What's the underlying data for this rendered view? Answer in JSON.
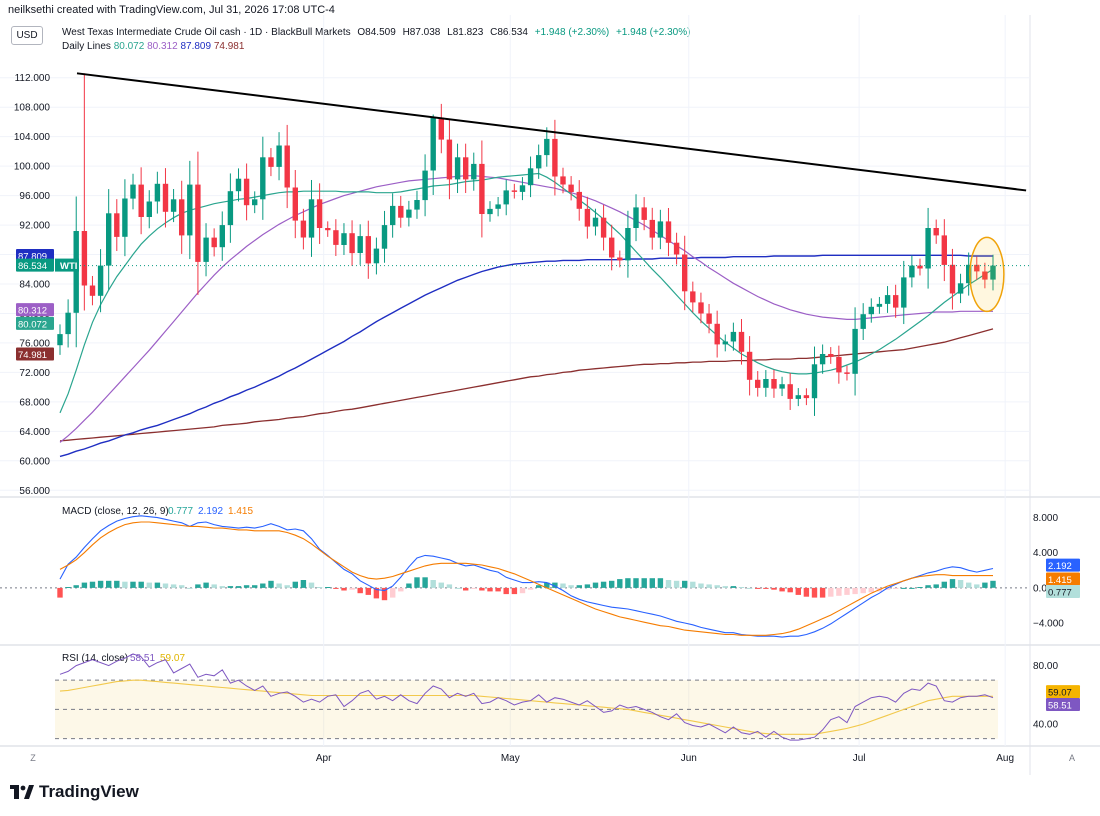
{
  "credit": "neilksethi created with TradingView.com, Jul 31, 2026 17:08 UTC-4",
  "currency_button": "USD",
  "brand": "TradingView",
  "colors": {
    "up": "#089981",
    "down": "#f23645",
    "sma20": "#2aa58f",
    "sma50": "#9c5fc6",
    "sma100": "#1f2ec2",
    "sma200": "#8b2f2f",
    "macd": "#2962ff",
    "signal": "#f57c00",
    "rsi": "#7e57c2",
    "rsi_ma": "#f2c94c"
  },
  "legend": {
    "symbol": "West Texas Intermediate Crude Oil cash · 1D · BlackBull Markets",
    "open": "O84.509",
    "high": "H87.038",
    "low": "L81.823",
    "close": "C86.534",
    "change": "+1.948 (+2.30%)",
    "change2": "+1.948 (+2.30%)",
    "lines_label": "Daily Lines",
    "lines_values": [
      "80.072",
      "80.312",
      "87.809",
      "74.981"
    ]
  },
  "chart_data": [
    {
      "type": "candlestick",
      "title": "West Texas Intermediate Crude Oil cash",
      "ylim": [
        54,
        114
      ],
      "y_ticks": [
        "112.000",
        "108.000",
        "104.000",
        "100.000",
        "96.000",
        "92.000",
        "88.000",
        "84.000",
        "80.000",
        "76.000",
        "72.000",
        "68.000",
        "64.000",
        "60.000",
        "56.000"
      ],
      "x_ticks": [
        "Apr",
        "May",
        "Jun",
        "Jul",
        "Aug"
      ],
      "last_price_tag": "86.534",
      "last_price_label": "WTI",
      "ma_tags": [
        "87.809",
        "80.312",
        "80.072",
        "74.981"
      ],
      "closes": [
        77.2,
        80.1,
        91.2,
        83.8,
        82.4,
        86.5,
        93.6,
        90.4,
        95.6,
        97.5,
        93.1,
        95.2,
        97.6,
        93.8,
        95.5,
        90.6,
        97.5,
        87.0,
        90.3,
        89.0,
        92.0,
        96.6,
        98.3,
        94.7,
        95.5,
        101.2,
        99.9,
        102.8,
        97.1,
        92.6,
        90.3,
        95.5,
        91.6,
        91.3,
        89.3,
        90.9,
        88.2,
        90.5,
        86.8,
        88.8,
        92.0,
        94.6,
        93.0,
        94.1,
        95.4,
        99.4,
        106.6,
        103.6,
        98.2,
        101.2,
        98.2,
        100.3,
        93.5,
        94.2,
        94.8,
        96.7,
        96.5,
        97.4,
        99.7,
        101.5,
        103.7,
        98.6,
        97.5,
        96.5,
        94.2,
        91.8,
        93.0,
        90.3,
        87.6,
        87.2,
        91.6,
        94.4,
        92.7,
        90.3,
        92.5,
        89.6,
        88.0,
        83.0,
        81.5,
        80.0,
        78.6,
        75.8,
        76.2,
        77.5,
        74.8,
        71.0,
        69.9,
        71.1,
        69.8,
        70.4,
        68.4,
        68.9,
        68.5,
        73.1,
        74.5,
        74.1,
        72.0,
        71.8,
        77.9,
        79.9,
        80.9,
        81.3,
        82.5,
        80.8,
        84.9,
        86.5,
        86.1,
        91.6,
        90.6,
        86.6,
        82.7,
        84.1,
        86.6,
        85.7,
        84.6,
        86.5
      ],
      "sma20": [
        66.5,
        69.1,
        72.3,
        75.7,
        78.8,
        81.2,
        83.2,
        85.0,
        86.5,
        88.0,
        89.4,
        90.5,
        91.5,
        92.3,
        93.0,
        93.6,
        94.0,
        94.3,
        94.6,
        94.9,
        95.1,
        95.3,
        95.5,
        95.6,
        95.8,
        96.0,
        96.2,
        96.4,
        96.5,
        96.5,
        96.6,
        96.6,
        96.6,
        96.6,
        96.6,
        96.5,
        96.5,
        96.5,
        96.5,
        96.4,
        96.4,
        96.4,
        96.5,
        96.7,
        96.9,
        97.1,
        97.3,
        97.4,
        97.5,
        97.7,
        97.9,
        98.0,
        98.1,
        98.3,
        98.5,
        98.6,
        98.7,
        98.8,
        98.9,
        99.0,
        98.5,
        97.8,
        97.0,
        96.2,
        95.4,
        94.6,
        93.7,
        92.8,
        91.8,
        90.8,
        89.6,
        88.4,
        87.2,
        86.0,
        84.9,
        83.7,
        82.5,
        81.3,
        80.1,
        79.0,
        78.0,
        77.0,
        76.1,
        75.3,
        74.5,
        73.9,
        73.3,
        72.8,
        72.4,
        72.1,
        71.9,
        71.8,
        71.8,
        71.9,
        72.1,
        72.3,
        72.6,
        73.0,
        73.4,
        73.9,
        74.5,
        75.1,
        75.8,
        76.5,
        77.3,
        78.1,
        78.9,
        79.7,
        80.6,
        81.5,
        82.3,
        83.1,
        83.9,
        84.6,
        85.3,
        86.0
      ],
      "sma50": [
        62.5,
        63.4,
        64.4,
        65.5,
        66.6,
        67.8,
        69.0,
        70.2,
        71.4,
        72.6,
        73.8,
        75.0,
        76.3,
        77.6,
        78.9,
        80.2,
        81.5,
        82.8,
        84.0,
        85.2,
        86.3,
        87.3,
        88.2,
        89.1,
        89.9,
        90.7,
        91.4,
        92.1,
        92.7,
        93.3,
        93.8,
        94.3,
        94.8,
        95.2,
        95.6,
        96.0,
        96.3,
        96.6,
        96.9,
        97.2,
        97.4,
        97.6,
        97.8,
        98.0,
        98.1,
        98.2,
        98.3,
        98.4,
        98.5,
        98.6,
        98.7,
        98.7,
        98.6,
        98.5,
        98.4,
        98.2,
        98.0,
        97.8,
        97.6,
        97.4,
        97.2,
        97.0,
        96.7,
        96.4,
        96.1,
        95.7,
        95.3,
        94.8,
        94.3,
        93.8,
        93.2,
        92.6,
        92.0,
        91.3,
        90.6,
        89.9,
        89.2,
        88.5,
        87.7,
        87.0,
        86.2,
        85.5,
        84.8,
        84.1,
        83.5,
        82.9,
        82.3,
        81.8,
        81.3,
        80.9,
        80.5,
        80.2,
        79.9,
        79.7,
        79.5,
        79.4,
        79.3,
        79.2,
        79.2,
        79.3,
        79.4,
        79.5,
        79.6,
        79.7,
        79.8,
        79.9,
        80.0,
        80.1,
        80.2,
        80.2,
        80.2,
        80.3,
        80.3,
        80.3,
        80.3,
        80.3
      ],
      "sma100": [
        60.6,
        60.9,
        61.3,
        61.6,
        62.0,
        62.4,
        62.7,
        63.1,
        63.5,
        63.8,
        64.2,
        64.5,
        64.8,
        65.2,
        65.6,
        66.0,
        66.4,
        66.9,
        67.3,
        67.8,
        68.2,
        68.7,
        69.1,
        69.6,
        70.0,
        70.5,
        71.0,
        71.5,
        72.1,
        72.6,
        73.2,
        73.8,
        74.4,
        75.0,
        75.6,
        76.2,
        76.9,
        77.5,
        78.2,
        78.9,
        79.5,
        80.1,
        80.7,
        81.3,
        81.9,
        82.5,
        83.0,
        83.5,
        84.0,
        84.5,
        84.9,
        85.3,
        85.7,
        86.0,
        86.3,
        86.5,
        86.7,
        86.8,
        86.9,
        87.0,
        87.1,
        87.1,
        87.2,
        87.2,
        87.2,
        87.3,
        87.3,
        87.3,
        87.3,
        87.3,
        87.4,
        87.4,
        87.4,
        87.4,
        87.5,
        87.5,
        87.5,
        87.5,
        87.5,
        87.6,
        87.6,
        87.6,
        87.6,
        87.7,
        87.7,
        87.7,
        87.7,
        87.7,
        87.8,
        87.8,
        87.8,
        87.8,
        87.8,
        87.8,
        87.9,
        87.9,
        87.9,
        87.9,
        87.9,
        87.9,
        87.9,
        87.9,
        87.9,
        87.9,
        87.9,
        87.9,
        87.9,
        87.9,
        87.9,
        87.9,
        87.9,
        87.9,
        87.8,
        87.8,
        87.8,
        87.8
      ],
      "sma200": [
        62.7,
        62.8,
        62.9,
        63.0,
        63.1,
        63.2,
        63.3,
        63.4,
        63.5,
        63.6,
        63.7,
        63.8,
        63.9,
        64.0,
        64.1,
        64.2,
        64.3,
        64.4,
        64.5,
        64.6,
        64.8,
        64.9,
        65.0,
        65.1,
        65.3,
        65.4,
        65.5,
        65.6,
        65.8,
        65.9,
        66.0,
        66.2,
        66.4,
        66.5,
        66.7,
        66.9,
        67.0,
        67.2,
        67.4,
        67.6,
        67.8,
        68.0,
        68.2,
        68.4,
        68.6,
        68.8,
        69.0,
        69.2,
        69.4,
        69.6,
        69.8,
        70.0,
        70.2,
        70.4,
        70.6,
        70.8,
        71.0,
        71.2,
        71.4,
        71.5,
        71.7,
        71.8,
        72.0,
        72.1,
        72.3,
        72.4,
        72.5,
        72.6,
        72.7,
        72.8,
        72.9,
        73.0,
        73.1,
        73.1,
        73.2,
        73.2,
        73.3,
        73.3,
        73.4,
        73.4,
        73.5,
        73.5,
        73.5,
        73.6,
        73.6,
        73.6,
        73.7,
        73.7,
        73.8,
        73.8,
        73.8,
        73.9,
        73.9,
        74.0,
        74.1,
        74.2,
        74.3,
        74.4,
        74.5,
        74.6,
        74.7,
        74.8,
        74.9,
        75.0,
        75.1,
        75.3,
        75.5,
        75.7,
        75.9,
        76.1,
        76.4,
        76.7,
        77.0,
        77.3,
        77.6,
        77.9
      ],
      "trendline": [
        [
          0,
          112.6
        ],
        [
          116,
          96.7
        ]
      ]
    },
    {
      "type": "macd",
      "title": "MACD (close, 12, 26, 9)",
      "values": [
        "0.777",
        "2.192",
        "1.415"
      ],
      "ylim": [
        -6.5,
        10
      ],
      "y_ticks": [
        "8.000",
        "4.000",
        "0.000",
        "−4.000"
      ],
      "tags": [
        "2.192",
        "1.415",
        "0.777"
      ],
      "macd": [
        1.0,
        2.7,
        3.5,
        4.6,
        5.6,
        6.5,
        7.1,
        7.6,
        7.9,
        8.1,
        8.2,
        8.1,
        8.0,
        7.8,
        7.6,
        7.4,
        7.0,
        7.4,
        7.5,
        7.2,
        7.0,
        6.9,
        6.8,
        6.9,
        6.8,
        7.0,
        7.3,
        7.0,
        6.6,
        6.7,
        6.5,
        5.6,
        4.4,
        3.7,
        2.9,
        2.1,
        1.6,
        0.8,
        0.3,
        -0.2,
        -0.3,
        0.2,
        1.2,
        2.4,
        3.4,
        3.7,
        3.6,
        3.4,
        3.2,
        2.8,
        2.5,
        2.6,
        2.3,
        2.0,
        1.8,
        1.2,
        0.9,
        0.6,
        0.6,
        0.7,
        0.6,
        0.2,
        -0.3,
        -0.9,
        -1.3,
        -1.6,
        -1.8,
        -2.0,
        -2.2,
        -2.3,
        -2.4,
        -2.6,
        -2.8,
        -3.0,
        -3.2,
        -3.5,
        -3.8,
        -4.0,
        -4.2,
        -4.5,
        -4.7,
        -4.9,
        -5.1,
        -5.1,
        -5.3,
        -5.4,
        -5.5,
        -5.5,
        -5.5,
        -5.6,
        -5.5,
        -5.5,
        -5.3,
        -5.0,
        -4.6,
        -4.1,
        -3.5,
        -2.9,
        -2.3,
        -1.7,
        -1.1,
        -0.6,
        0.0,
        0.4,
        0.8,
        1.1,
        1.4,
        1.7,
        1.9,
        2.2,
        2.4,
        2.3,
        2.0,
        1.8,
        2.0,
        2.2
      ],
      "signal": [
        2.1,
        2.6,
        3.2,
        4.0,
        4.9,
        5.7,
        6.3,
        6.8,
        7.2,
        7.4,
        7.5,
        7.5,
        7.4,
        7.3,
        7.2,
        7.1,
        7.0,
        7.0,
        6.9,
        6.8,
        6.8,
        6.7,
        6.6,
        6.6,
        6.5,
        6.5,
        6.5,
        6.5,
        6.3,
        6.0,
        5.6,
        5.0,
        4.3,
        3.6,
        3.0,
        2.4,
        1.8,
        1.4,
        1.1,
        1.0,
        1.1,
        1.3,
        1.6,
        1.9,
        2.2,
        2.5,
        2.7,
        2.8,
        2.8,
        2.8,
        2.8,
        2.7,
        2.6,
        2.4,
        2.2,
        1.9,
        1.6,
        1.2,
        0.8,
        0.4,
        0.0,
        -0.4,
        -0.8,
        -1.2,
        -1.6,
        -2.0,
        -2.4,
        -2.7,
        -3.0,
        -3.3,
        -3.5,
        -3.7,
        -3.9,
        -4.1,
        -4.3,
        -4.4,
        -4.6,
        -4.8,
        -4.9,
        -5.0,
        -5.1,
        -5.2,
        -5.3,
        -5.3,
        -5.4,
        -5.4,
        -5.4,
        -5.4,
        -5.3,
        -5.2,
        -5.0,
        -4.7,
        -4.3,
        -3.9,
        -3.5,
        -3.1,
        -2.6,
        -2.1,
        -1.6,
        -1.1,
        -0.6,
        -0.2,
        0.2,
        0.5,
        0.8,
        1.1,
        1.3,
        1.4,
        1.5,
        1.5,
        1.4,
        1.4,
        1.4,
        1.4,
        1.4,
        1.4
      ],
      "histogram": [
        -1.1,
        0.1,
        0.3,
        0.6,
        0.7,
        0.8,
        0.8,
        0.8,
        0.7,
        0.7,
        0.7,
        0.6,
        0.6,
        0.5,
        0.4,
        0.3,
        0.0,
        0.4,
        0.6,
        0.4,
        0.2,
        0.2,
        0.2,
        0.3,
        0.3,
        0.5,
        0.8,
        0.5,
        0.3,
        0.7,
        0.9,
        0.6,
        0.1,
        0.1,
        -0.1,
        -0.3,
        -0.2,
        -0.6,
        -0.8,
        -1.2,
        -1.4,
        -1.1,
        -0.4,
        0.5,
        1.2,
        1.2,
        0.9,
        0.6,
        0.4,
        0.0,
        -0.3,
        -0.1,
        -0.3,
        -0.4,
        -0.4,
        -0.7,
        -0.7,
        -0.6,
        -0.2,
        0.3,
        0.6,
        0.6,
        0.5,
        0.3,
        0.3,
        0.4,
        0.6,
        0.7,
        0.8,
        1.0,
        1.1,
        1.1,
        1.1,
        1.1,
        1.1,
        0.9,
        0.8,
        0.8,
        0.7,
        0.5,
        0.4,
        0.3,
        0.2,
        0.2,
        0.1,
        0.0,
        -0.1,
        -0.1,
        -0.2,
        -0.4,
        -0.5,
        -0.8,
        -1.0,
        -1.1,
        -1.1,
        -1.0,
        -0.9,
        -0.8,
        -0.7,
        -0.6,
        -0.5,
        -0.4,
        -0.2,
        -0.1,
        0.0,
        0.0,
        0.1,
        0.3,
        0.4,
        0.7,
        1.0,
        0.9,
        0.6,
        0.4,
        0.6,
        0.8
      ]
    },
    {
      "type": "rsi",
      "title": "RSI (14, close)",
      "values": [
        "58.51",
        "59.07"
      ],
      "ylim": [
        25,
        92
      ],
      "y_ticks": [
        "80.00",
        "40.00"
      ],
      "bands": [
        70,
        50,
        30
      ],
      "tags": [
        "59.07",
        "58.51"
      ],
      "rsi": [
        74,
        76,
        80,
        82,
        84,
        82,
        80,
        83,
        85,
        88,
        86,
        79,
        82,
        84,
        75,
        78,
        81,
        72,
        74,
        73,
        77,
        68,
        70,
        66,
        63,
        66,
        59,
        61,
        62,
        59,
        55,
        57,
        55,
        59,
        60,
        52,
        56,
        61,
        63,
        57,
        59,
        56,
        60,
        56,
        54,
        61,
        66,
        64,
        58,
        61,
        59,
        61,
        54,
        55,
        58,
        56,
        53,
        55,
        56,
        60,
        55,
        58,
        57,
        55,
        53,
        56,
        52,
        48,
        49,
        53,
        51,
        52,
        50,
        48,
        45,
        43,
        47,
        41,
        39,
        38,
        40,
        37,
        34,
        38,
        34,
        33,
        35,
        31,
        35,
        31,
        29,
        29,
        30,
        31,
        36,
        43,
        45,
        41,
        52,
        55,
        58,
        59,
        58,
        55,
        61,
        64,
        63,
        68,
        66,
        56,
        55,
        58,
        59,
        59,
        60,
        58
      ],
      "rsi_ma": [
        62.5,
        63,
        64,
        65,
        66,
        67,
        68,
        69,
        69.5,
        70,
        70,
        69.5,
        69,
        68.5,
        68,
        67.5,
        67,
        66.5,
        66,
        65.5,
        65,
        64.5,
        64,
        63.5,
        63,
        62.5,
        62,
        61.5,
        61,
        60.5,
        60,
        59.5,
        59.5,
        59.5,
        59.5,
        59.5,
        59.5,
        59.5,
        59.5,
        59.5,
        59.5,
        59.5,
        59.5,
        59.5,
        59.5,
        59.5,
        59.5,
        59.5,
        59.5,
        59.5,
        59.5,
        59.5,
        59,
        58.5,
        58,
        57.5,
        57,
        56.5,
        56,
        55.5,
        55,
        54.5,
        54,
        53.5,
        53,
        52.5,
        52,
        51.5,
        51,
        50.5,
        50,
        49,
        48,
        47,
        46,
        45,
        44,
        43,
        42,
        41,
        40,
        39,
        38,
        37,
        36,
        35,
        34,
        33.5,
        33,
        33,
        33,
        33,
        33,
        33,
        34,
        35,
        36,
        37,
        38.5,
        40,
        42,
        44,
        46,
        48,
        50,
        52,
        54,
        56,
        57,
        58,
        59,
        59,
        59,
        59,
        59,
        59
      ]
    }
  ]
}
